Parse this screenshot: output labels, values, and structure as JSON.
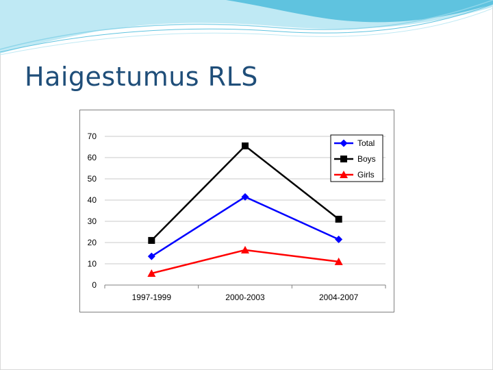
{
  "slide": {
    "title": "Haigestumus RLS"
  },
  "colors": {
    "title": "#1f4e79",
    "wave_primary": "#5fc3df",
    "wave_light": "#bfe9f4"
  },
  "chart_data": {
    "type": "line",
    "categories": [
      "1997-1999",
      "2000-2003",
      "2004-2007"
    ],
    "ylim": [
      0,
      70
    ],
    "yticks": [
      0,
      10,
      20,
      30,
      40,
      50,
      60,
      70
    ],
    "grid": true,
    "legend_position": "top-right",
    "series": [
      {
        "name": "Total",
        "values": [
          13.5,
          41.5,
          21.5
        ],
        "color": "#0000ff",
        "marker": "diamond"
      },
      {
        "name": "Boys",
        "values": [
          21,
          65.5,
          31
        ],
        "color": "#000000",
        "marker": "square"
      },
      {
        "name": "Girls",
        "values": [
          5.5,
          16.5,
          11
        ],
        "color": "#ff0000",
        "marker": "triangle"
      }
    ]
  }
}
